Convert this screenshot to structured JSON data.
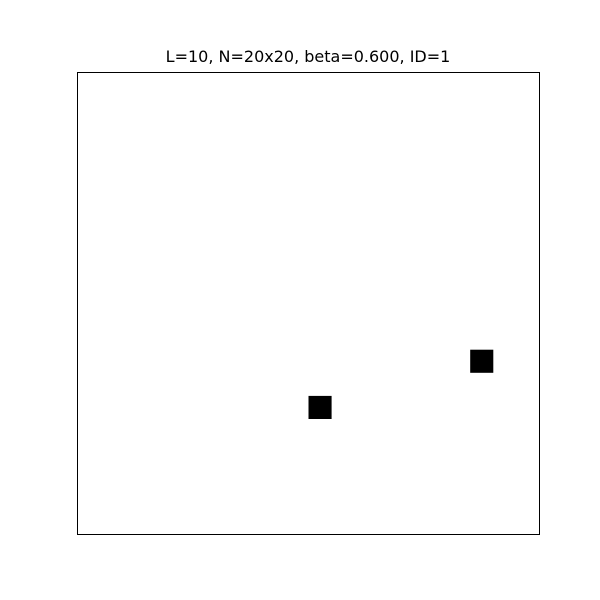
{
  "chart_data": {
    "type": "heatmap",
    "title": "L=10, N=20x20, beta=0.600, ID=1",
    "xlabel": "",
    "ylabel": "",
    "grid": false,
    "lattice_size": [
      20,
      20
    ],
    "background_value": 0,
    "cell_value": 1,
    "colors": {
      "background": "#ffffff",
      "occupied": "#000000",
      "frame": "#000000"
    },
    "occupied_cells": [
      {
        "row": 7,
        "col": 17
      },
      {
        "row": 5,
        "col": 10
      }
    ]
  }
}
